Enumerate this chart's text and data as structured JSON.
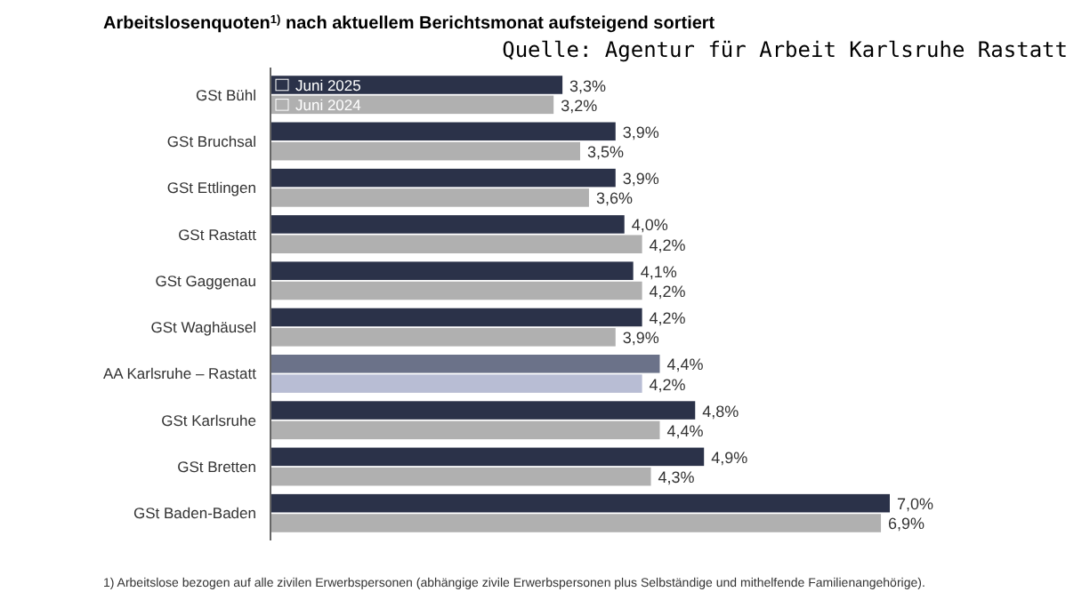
{
  "chart_data": {
    "type": "bar",
    "orientation": "horizontal",
    "title": "Arbeitslosenquoten$^{1)}$ nach aktuellem Berichtsmonat aufsteigend sortiert",
    "annotations": [
      "Quelle: Agentur für Arbeit Karlsruhe Rastatt",
      "1) Arbeitslose bezogen auf alle zivilen Erwerbspersonen (abhängige zivile Erwerbspersonen plus Selbständige und mithelfende Familienangehörige)."
    ],
    "categories": [
      "GSt Bühl",
      "GSt Bruchsal",
      "GSt Ettlingen",
      "GSt Rastatt",
      "GSt Gaggenau",
      "GSt Waghäusel",
      "AA Karlsruhe – Rastatt",
      "GSt Karlsruhe",
      "GSt Bretten",
      "GSt Baden-Baden"
    ],
    "legend": "top left",
    "series": [
      {
        "name": "Juni 2025",
        "color": "#2b3249",
        "colors": [
          "#2b3249",
          "#2b3249",
          "#2b3249",
          "#2b3249",
          "#2b3249",
          "#2b3249",
          "#6b7289",
          "#2b3249",
          "#2b3249",
          "#2b3249"
        ],
        "values": [
          3.3,
          3.9,
          3.9,
          4.0,
          4.1,
          4.2,
          4.4,
          4.8,
          4.9,
          7.0
        ],
        "value_labels": [
          "3,3%",
          "3,9%",
          "3,9%",
          "4,0%",
          "4,1%",
          "4,2%",
          "4,4%",
          "4,8%",
          "4,9%",
          "7,0%"
        ]
      },
      {
        "name": "Juni 2024",
        "color": "#b0b0b0",
        "colors": [
          "#b0b0b0",
          "#b0b0b0",
          "#b0b0b0",
          "#b0b0b0",
          "#b0b0b0",
          "#b0b0b0",
          "#b8bdd4",
          "#b0b0b0",
          "#b0b0b0",
          "#b0b0b0"
        ],
        "values": [
          3.2,
          3.5,
          3.6,
          4.2,
          4.2,
          3.9,
          4.2,
          4.4,
          4.3,
          6.9
        ],
        "value_labels": [
          "3,2%",
          "3,5%",
          "3,6%",
          "4,2%",
          "4,2%",
          "3,9%",
          "4,2%",
          "4,4%",
          "4,3%",
          "6,9%"
        ]
      }
    ]
  }
}
